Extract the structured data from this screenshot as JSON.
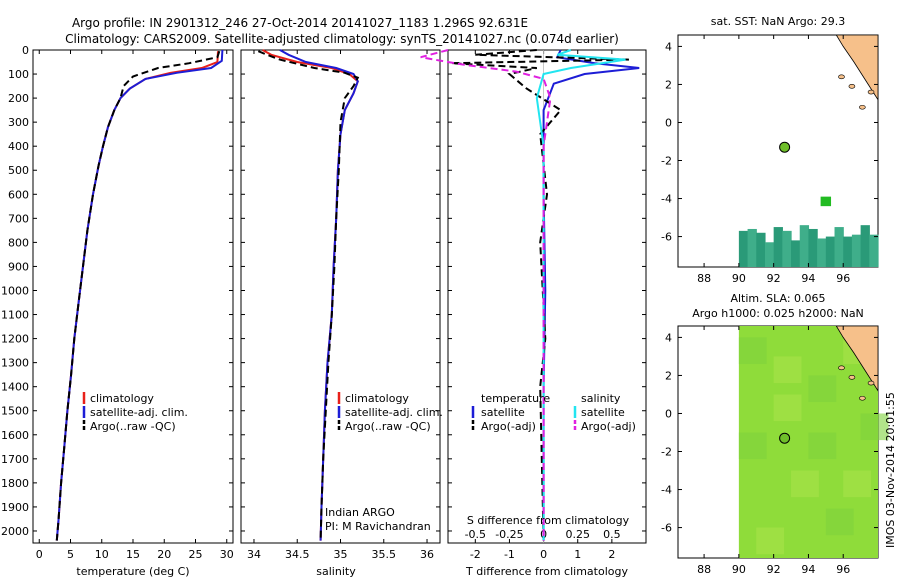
{
  "title_line1": "Argo profile: IN 2901312_246 27-Oct-2014 20141027_1183 1.296S 92.631E",
  "title_line2": "Climatology: CARS2009. Satellite-adjusted climatology: synTS_20141027.nc (0.074d earlier)",
  "timestamp": "IMOS 03-Nov-2014 20:01:55",
  "colors": {
    "climatology": "#e8201a",
    "satellite": "#1d1dd6",
    "argo": "#000000",
    "satellite_salt": "#22e5f0",
    "argo_salt": "#e020e0",
    "land": "#f6c08a",
    "sst_cells": "#2a9a78",
    "sla_field": "#8fdc3a"
  },
  "chart_data": [
    {
      "type": "line",
      "name": "temperature-profile",
      "xlabel": "temperature (deg C)",
      "xlim": [
        -1,
        31
      ],
      "ylim": [
        2050,
        0
      ],
      "xticks": [
        0,
        5,
        10,
        15,
        20,
        25,
        30
      ],
      "yticks": [
        0,
        100,
        200,
        300,
        400,
        500,
        600,
        700,
        800,
        900,
        1000,
        1100,
        1200,
        1300,
        1400,
        1500,
        1600,
        1700,
        1800,
        1900,
        2000
      ],
      "legend": [
        "climatology",
        "satellite-adj. clim.",
        "Argo(..raw -QC)"
      ],
      "series": [
        {
          "name": "climatology",
          "style": "solid",
          "points": [
            [
              28.6,
              5
            ],
            [
              28.5,
              50
            ],
            [
              26,
              75
            ],
            [
              21,
              95
            ],
            [
              17,
              120
            ],
            [
              14.5,
              160
            ],
            [
              13,
              200
            ],
            [
              12,
              250
            ],
            [
              11,
              320
            ],
            [
              10.2,
              400
            ],
            [
              9.5,
              480
            ],
            [
              8.6,
              600
            ],
            [
              7.7,
              750
            ],
            [
              7,
              900
            ],
            [
              6.3,
              1050
            ],
            [
              5.6,
              1200
            ],
            [
              5.1,
              1350
            ],
            [
              4.5,
              1500
            ],
            [
              4,
              1650
            ],
            [
              3.5,
              1800
            ],
            [
              3.1,
              1950
            ],
            [
              2.8,
              2040
            ]
          ]
        },
        {
          "name": "satellite-adj. clim.",
          "style": "solid",
          "points": [
            [
              29.3,
              0
            ],
            [
              29.2,
              45
            ],
            [
              27.5,
              75
            ],
            [
              22,
              95
            ],
            [
              17,
              120
            ],
            [
              14.5,
              160
            ],
            [
              13,
              200
            ],
            [
              12,
              250
            ],
            [
              11,
              320
            ],
            [
              10.2,
              400
            ],
            [
              9.5,
              480
            ],
            [
              8.6,
              600
            ],
            [
              7.7,
              750
            ],
            [
              7,
              900
            ],
            [
              6.3,
              1050
            ],
            [
              5.6,
              1200
            ],
            [
              5.1,
              1350
            ],
            [
              4.5,
              1500
            ],
            [
              4,
              1650
            ],
            [
              3.5,
              1800
            ],
            [
              3.1,
              1950
            ],
            [
              2.8,
              2040
            ]
          ]
        },
        {
          "name": "Argo(..raw -QC)",
          "style": "dashed",
          "points": [
            [
              28.8,
              5
            ],
            [
              28.5,
              30
            ],
            [
              24,
              55
            ],
            [
              19,
              75
            ],
            [
              15,
              110
            ],
            [
              13.5,
              150
            ],
            [
              13,
              200
            ],
            [
              12,
              250
            ],
            [
              11,
              320
            ],
            [
              10.2,
              400
            ],
            [
              9.5,
              480
            ],
            [
              8.6,
              600
            ],
            [
              7.7,
              750
            ],
            [
              7,
              900
            ],
            [
              6.3,
              1050
            ],
            [
              5.6,
              1200
            ],
            [
              5.1,
              1350
            ],
            [
              4.5,
              1500
            ],
            [
              4,
              1650
            ],
            [
              3.5,
              1800
            ],
            [
              3.1,
              1950
            ],
            [
              2.8,
              2040
            ]
          ]
        }
      ]
    },
    {
      "type": "line",
      "name": "salinity-profile",
      "xlabel": "salinity",
      "xlim": [
        33.85,
        36.15
      ],
      "ylim": [
        2050,
        0
      ],
      "xticks": [
        34,
        34.5,
        35,
        35.5,
        36
      ],
      "legend": [
        "climatology",
        "satellite-adj. clim.",
        "Argo(..raw -QC)"
      ],
      "annotation": [
        "Indian ARGO",
        "PI: M Ravichandran"
      ],
      "series": [
        {
          "name": "climatology",
          "style": "solid",
          "points": [
            [
              34.1,
              0
            ],
            [
              34.2,
              20
            ],
            [
              34.5,
              50
            ],
            [
              34.9,
              75
            ],
            [
              35.1,
              100
            ],
            [
              35.2,
              130
            ],
            [
              35.15,
              180
            ],
            [
              35.05,
              250
            ],
            [
              35,
              350
            ],
            [
              34.97,
              500
            ],
            [
              34.95,
              700
            ],
            [
              34.92,
              900
            ],
            [
              34.9,
              1100
            ],
            [
              34.85,
              1300
            ],
            [
              34.82,
              1500
            ],
            [
              34.8,
              1700
            ],
            [
              34.78,
              1900
            ],
            [
              34.77,
              2040
            ]
          ]
        },
        {
          "name": "satellite-adj. clim.",
          "style": "solid",
          "points": [
            [
              34.3,
              0
            ],
            [
              34.4,
              20
            ],
            [
              34.6,
              50
            ],
            [
              34.95,
              75
            ],
            [
              35.15,
              100
            ],
            [
              35.2,
              130
            ],
            [
              35.15,
              180
            ],
            [
              35.05,
              250
            ],
            [
              35,
              350
            ],
            [
              34.97,
              500
            ],
            [
              34.95,
              700
            ],
            [
              34.92,
              900
            ],
            [
              34.9,
              1100
            ],
            [
              34.85,
              1300
            ],
            [
              34.82,
              1500
            ],
            [
              34.8,
              1700
            ],
            [
              34.78,
              1900
            ],
            [
              34.77,
              2040
            ]
          ]
        },
        {
          "name": "Argo(..raw -QC)",
          "style": "dashed",
          "points": [
            [
              34.05,
              5
            ],
            [
              34.15,
              20
            ],
            [
              34.3,
              40
            ],
            [
              34.7,
              75
            ],
            [
              35.05,
              95
            ],
            [
              35.2,
              115
            ],
            [
              35.15,
              150
            ],
            [
              35.05,
              200
            ],
            [
              35,
              300
            ],
            [
              34.98,
              500
            ],
            [
              34.95,
              700
            ],
            [
              34.93,
              900
            ],
            [
              34.9,
              1100
            ],
            [
              34.86,
              1300
            ],
            [
              34.83,
              1500
            ],
            [
              34.8,
              1700
            ],
            [
              34.78,
              1900
            ],
            [
              34.77,
              2040
            ]
          ]
        }
      ]
    },
    {
      "type": "line",
      "name": "difference-profile",
      "xlabel": "T difference from climatology",
      "xlabel_top": "S difference from climatology",
      "xlim": [
        -2.8,
        3.0
      ],
      "ylim": [
        2050,
        0
      ],
      "xticks": [
        -2,
        -1,
        0,
        1,
        2
      ],
      "s_ticks": [
        "-0.5",
        "-0.25",
        "0",
        "0.25",
        "0.5"
      ],
      "legend_titles": [
        "temperature",
        "salinity"
      ],
      "legend": [
        "satellite",
        "Argo(-adj)",
        "satellite",
        "Argo(-adj)"
      ],
      "series": [
        {
          "name": "satellite",
          "variable": "T",
          "style": "solid",
          "points": [
            [
              0.5,
              0
            ],
            [
              0.4,
              30
            ],
            [
              1.5,
              55
            ],
            [
              2.8,
              75
            ],
            [
              1.2,
              100
            ],
            [
              0.3,
              140
            ],
            [
              0,
              250
            ],
            [
              0,
              600
            ],
            [
              0.05,
              1000
            ],
            [
              0,
              1400
            ],
            [
              0,
              2040
            ]
          ]
        },
        {
          "name": "Argo(-adj)",
          "variable": "T",
          "style": "dashed",
          "points": [
            [
              -0.2,
              0
            ],
            [
              -2,
              20
            ],
            [
              2.5,
              40
            ],
            [
              -2.7,
              55
            ],
            [
              -0.2,
              75
            ],
            [
              -1,
              100
            ],
            [
              -0.5,
              160
            ],
            [
              0.5,
              250
            ],
            [
              -0.1,
              350
            ],
            [
              0.1,
              600
            ],
            [
              -0.1,
              800
            ],
            [
              0.05,
              1200
            ],
            [
              -0.1,
              1400
            ],
            [
              0,
              2040
            ]
          ]
        },
        {
          "name": "satellite",
          "variable": "S",
          "style": "solid",
          "points": [
            [
              0.2,
              0
            ],
            [
              0.1,
              20
            ],
            [
              0.6,
              40
            ],
            [
              0.2,
              75
            ],
            [
              0,
              100
            ],
            [
              -0.05,
              200
            ],
            [
              0,
              400
            ],
            [
              0,
              2040
            ]
          ]
        },
        {
          "name": "Argo(-adj)",
          "variable": "S",
          "style": "dashed",
          "points": [
            [
              -0.7,
              0
            ],
            [
              -0.9,
              30
            ],
            [
              -0.6,
              60
            ],
            [
              -0.2,
              90
            ],
            [
              0,
              120
            ],
            [
              0.05,
              200
            ],
            [
              0,
              400
            ],
            [
              0,
              2040
            ]
          ]
        }
      ]
    },
    {
      "type": "heatmap",
      "name": "sst-map",
      "title": "sat. SST: NaN Argo: 29.3",
      "xlim": [
        86.5,
        98
      ],
      "ylim": [
        -7.6,
        4.6
      ],
      "xticks": [
        88,
        90,
        92,
        94,
        96
      ],
      "yticks": [
        4,
        2,
        0,
        -2,
        -4,
        -6
      ],
      "marker": {
        "lon": 92.63,
        "lat": -1.3
      }
    },
    {
      "type": "heatmap",
      "name": "sla-map",
      "title": "Altim. SLA: 0.065",
      "subtitle": "Argo h1000: 0.025 h2000: NaN",
      "xlim": [
        86.5,
        98
      ],
      "ylim": [
        -7.6,
        4.6
      ],
      "xticks": [
        88,
        90,
        92,
        94,
        96
      ],
      "yticks": [
        4,
        2,
        0,
        -2,
        -4,
        -6
      ],
      "marker": {
        "lon": 92.63,
        "lat": -1.3
      }
    }
  ]
}
